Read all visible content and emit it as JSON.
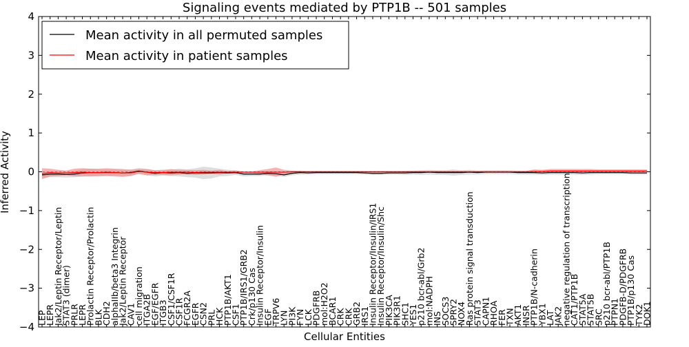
{
  "chart_data": {
    "type": "line",
    "title": "Signaling events mediated by PTP1B -- 501 samples",
    "xlabel": "Cellular Entities",
    "ylabel": "Inferred Activity",
    "ylim": [
      -4,
      4
    ],
    "yticks": [
      -4,
      -3,
      -2,
      -1,
      0,
      1,
      2,
      3,
      4
    ],
    "ytick_labels": [
      "−4",
      "−3",
      "−2",
      "−1",
      "0",
      "1",
      "2",
      "3",
      "4"
    ],
    "legend_position": "top-left",
    "colors": {
      "permuted": "#000000",
      "patient": "#ff0000",
      "patient_band": "#f08080",
      "permuted_band": "#c8c8c8"
    },
    "categories": [
      "LEP",
      "LEPR",
      "Jak2/Leptin Receptor/Leptin",
      "STAT3 (dimer)",
      "PRLR",
      "LEPR",
      "Prolactin Receptor/Prolactin",
      "BLK",
      "CDH2",
      "alphaIIb/beta3 Integrin",
      "Jak2/Leptin Receptor",
      "CAV1",
      "cell migration",
      "ITGA2B",
      "EGF/EGFR",
      "ITGB3",
      "CSF1/CSF1R",
      "CSF1R",
      "FCGR2A",
      "EGFR",
      "CSN2",
      "PRL",
      "HCK",
      "PTP1B/AKT1",
      "CSF1",
      "PTP1B/IRS1/GRB2",
      "Crk/p130 Cas",
      "Insulin Receptor/Insulin",
      "EGF",
      "TRPV6",
      "LYN",
      "PI3K",
      "FYN",
      "LCK",
      "PDGFRB",
      "mol:H2O2",
      "BCAR1",
      "CRK",
      "CRK",
      "GRB2",
      "IRS1",
      "Insulin Receptor/Insulin/IRS1",
      "Insulin Receptor/Insulin/Shc",
      "PIK3CA",
      "PIK3R1",
      "SHC1",
      "YES1",
      "p210 bcr-abl/Grb2",
      "mol:NADPH",
      "INS",
      "SOCS3",
      "SPRY2",
      "NOX4",
      "Ras protein signal transduction",
      "STAT3",
      "CAPN1",
      "RHOA",
      "FER",
      "TXN",
      "AKT1",
      "INSR",
      "PTP1B/N-cadherin",
      "YBX1",
      "LAT",
      "JAK2",
      "negative regulation of transcription",
      "CAT1/PTP1B",
      "STAT5A",
      "STAT5B",
      "SRC",
      "p210 bcr-abl/PTP1B",
      "PTPN1",
      "PDGFB-D/PDGFRB",
      "PTP1B/p130 Cas",
      "TYK2",
      "DOK1"
    ],
    "series": [
      {
        "name": "Mean activity in all permuted samples",
        "color": "#000000",
        "values": [
          -0.08,
          -0.06,
          -0.06,
          -0.07,
          -0.06,
          -0.03,
          -0.02,
          -0.02,
          -0.02,
          -0.02,
          -0.03,
          -0.02,
          0.02,
          -0.01,
          -0.04,
          -0.02,
          -0.03,
          -0.02,
          -0.04,
          -0.03,
          -0.03,
          -0.03,
          -0.02,
          -0.03,
          -0.02,
          -0.06,
          -0.06,
          -0.06,
          -0.04,
          -0.05,
          -0.08,
          -0.04,
          -0.02,
          -0.03,
          -0.02,
          -0.02,
          -0.02,
          -0.02,
          -0.02,
          -0.02,
          -0.03,
          -0.04,
          -0.04,
          -0.03,
          -0.03,
          -0.03,
          -0.02,
          -0.02,
          -0.01,
          -0.02,
          -0.02,
          -0.02,
          -0.02,
          -0.01,
          -0.02,
          -0.01,
          -0.01,
          -0.01,
          -0.01,
          -0.02,
          -0.02,
          -0.02,
          -0.03,
          -0.02,
          -0.02,
          -0.02,
          -0.02,
          -0.03,
          -0.02,
          -0.02,
          -0.02,
          -0.02,
          -0.02,
          -0.03,
          -0.03,
          -0.03
        ],
        "band": [
          0.08,
          0.08,
          0.08,
          0.08,
          0.08,
          0.1,
          0.1,
          0.08,
          0.08,
          0.08,
          0.08,
          0.08,
          0.08,
          0.08,
          0.08,
          0.08,
          0.08,
          0.1,
          0.1,
          0.12,
          0.16,
          0.14,
          0.1,
          0.08,
          0.06,
          0.06,
          0.05,
          0.05,
          0.05,
          0.05,
          0.05,
          0.05,
          0.05,
          0.04,
          0.04,
          0.04,
          0.04,
          0.04,
          0.04,
          0.04,
          0.04,
          0.04,
          0.04,
          0.04,
          0.04,
          0.05,
          0.05,
          0.06,
          0.06,
          0.06,
          0.06,
          0.08,
          0.06,
          0.06,
          0.05,
          0.05,
          0.05,
          0.05,
          0.05,
          0.05,
          0.05,
          0.05,
          0.05,
          0.05,
          0.05,
          0.05,
          0.05,
          0.05,
          0.05,
          0.04,
          0.04,
          0.04,
          0.04,
          0.04,
          0.04,
          0.04
        ]
      },
      {
        "name": "Mean activity in patient samples",
        "color": "#ff0000",
        "values": [
          -0.05,
          -0.02,
          -0.03,
          -0.03,
          -0.02,
          -0.01,
          -0.02,
          -0.02,
          -0.01,
          -0.02,
          -0.03,
          -0.03,
          0.01,
          -0.01,
          -0.02,
          -0.02,
          -0.01,
          -0.01,
          -0.01,
          -0.02,
          -0.01,
          -0.01,
          -0.01,
          -0.01,
          -0.01,
          -0.01,
          -0.01,
          -0.01,
          -0.01,
          -0.01,
          -0.01,
          0.0,
          0.0,
          0.0,
          0.0,
          0.0,
          0.0,
          0.0,
          0.0,
          0.0,
          0.0,
          0.0,
          0.0,
          0.0,
          0.0,
          0.0,
          0.0,
          0.0,
          0.0,
          0.0,
          0.0,
          0.0,
          0.0,
          0.0,
          0.0,
          0.0,
          0.0,
          0.0,
          0.0,
          0.0,
          0.0,
          0.01,
          0.01,
          0.02,
          0.02,
          0.02,
          0.02,
          0.02,
          0.02,
          0.02,
          0.02,
          0.02,
          0.02,
          0.02,
          0.02,
          0.02
        ],
        "band": [
          0.14,
          0.1,
          0.08,
          0.06,
          0.1,
          0.1,
          0.1,
          0.1,
          0.1,
          0.1,
          0.1,
          0.08,
          0.06,
          0.08,
          0.06,
          0.06,
          0.08,
          0.06,
          0.06,
          0.06,
          0.06,
          0.04,
          0.06,
          0.03,
          0.04,
          0.02,
          0.02,
          0.05,
          0.08,
          0.12,
          0.06,
          0.03,
          0.02,
          0.02,
          0.02,
          0.02,
          0.02,
          0.02,
          0.02,
          0.02,
          0.02,
          0.02,
          0.02,
          0.02,
          0.02,
          0.02,
          0.02,
          0.02,
          0.02,
          0.02,
          0.02,
          0.02,
          0.02,
          0.02,
          0.02,
          0.02,
          0.02,
          0.02,
          0.02,
          0.02,
          0.02,
          0.05,
          0.04,
          0.05,
          0.05,
          0.05,
          0.05,
          0.05,
          0.05,
          0.04,
          0.04,
          0.04,
          0.04,
          0.04,
          0.04,
          0.04
        ]
      }
    ]
  }
}
